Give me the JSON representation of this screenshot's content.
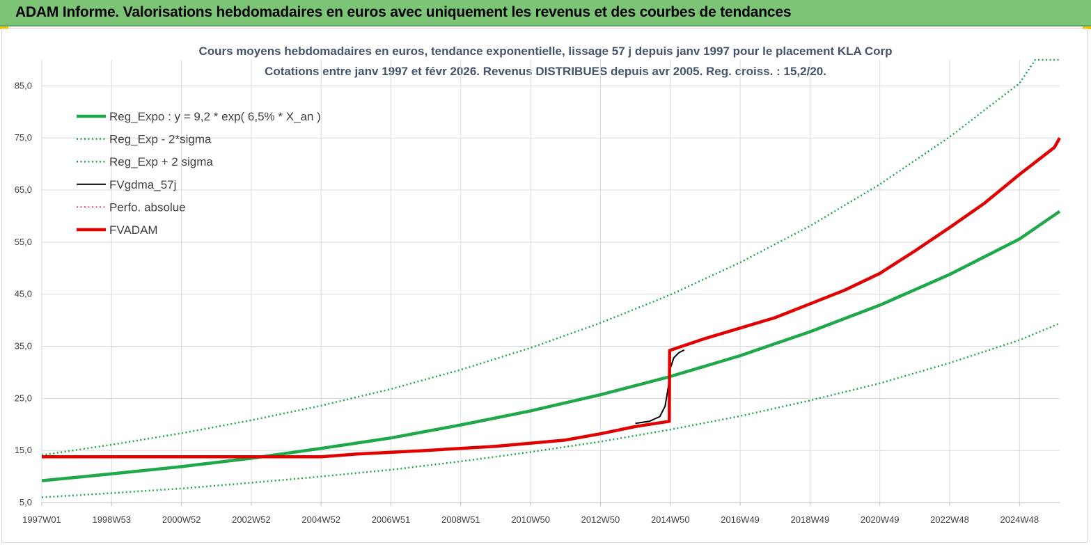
{
  "header": {
    "title": "ADAM Informe. Valorisations hebdomadaires en euros avec uniquement les revenus et des courbes de tendances"
  },
  "chart_data": {
    "type": "line",
    "title": "Cours moyens hebdomadaires en euros, tendance exponentielle, lissage 57 j depuis janv 1997 pour le placement KLA Corp",
    "subtitle": "Cotations entre janv 1997 et févr 2026. Revenus DISTRIBUES depuis avr 2005. Reg. croiss. : 15,2/20.",
    "xlabel": "",
    "ylabel": "",
    "ylim": [
      5,
      90
    ],
    "xlim": [
      1997.0,
      2026.15
    ],
    "y_ticks": [
      "85,0",
      "75,0",
      "65,0",
      "55,0",
      "45,0",
      "35,0",
      "25,0",
      "15,0",
      "5,0"
    ],
    "y_tick_values": [
      85,
      75,
      65,
      55,
      45,
      35,
      25,
      15,
      5
    ],
    "x_ticks": [
      "1997W01",
      "1998W53",
      "2000W52",
      "2002W52",
      "2004W52",
      "2006W51",
      "2008W51",
      "2010W50",
      "2012W50",
      "2014W50",
      "2016W49",
      "2018W49",
      "2020W49",
      "2022W48",
      "2024W48"
    ],
    "x_tick_values": [
      1997.0,
      1999.0,
      2001.0,
      2003.0,
      2005.0,
      2007.0,
      2009.0,
      2011.0,
      2013.0,
      2015.0,
      2017.0,
      2019.0,
      2021.0,
      2023.0,
      2025.0
    ],
    "grid": true,
    "legend_position": "top-left",
    "series": [
      {
        "name": "Reg_Expo : y = 9,2 * exp( 6,5% *  X_an )",
        "color": "#1fa84a",
        "style": "solid-thick",
        "x": [
          1997,
          1999,
          2001,
          2003,
          2005,
          2007,
          2009,
          2011,
          2013,
          2015,
          2017,
          2019,
          2021,
          2023,
          2025,
          2026.15
        ],
        "values": [
          9.2,
          10.5,
          11.9,
          13.5,
          15.4,
          17.4,
          19.9,
          22.6,
          25.7,
          29.2,
          33.2,
          37.8,
          42.9,
          48.8,
          55.6,
          60.9
        ]
      },
      {
        "name": "Reg_Exp - 2*sigma",
        "color": "#1fa84a",
        "style": "dotted",
        "x": [
          1997,
          1999,
          2001,
          2003,
          2005,
          2007,
          2009,
          2011,
          2013,
          2015,
          2017,
          2019,
          2021,
          2023,
          2025,
          2026.15
        ],
        "values": [
          6.0,
          6.8,
          7.7,
          8.8,
          10.0,
          11.3,
          12.9,
          14.7,
          16.7,
          19.0,
          21.6,
          24.6,
          27.9,
          31.8,
          36.2,
          39.4
        ]
      },
      {
        "name": "Reg_Exp + 2 sigma",
        "color": "#1fa84a",
        "style": "dotted",
        "x": [
          1997,
          1999,
          2001,
          2003,
          2005,
          2007,
          2009,
          2011,
          2013,
          2015,
          2017,
          2019,
          2021,
          2023,
          2025,
          2025.45,
          2026.15
        ],
        "values": [
          14.1,
          16.1,
          18.3,
          20.8,
          23.6,
          26.8,
          30.5,
          34.7,
          39.5,
          44.9,
          51.1,
          58.1,
          66.1,
          75.2,
          85.5,
          90.0,
          90.0
        ]
      },
      {
        "name": "FVgdma_57j",
        "color": "#000000",
        "style": "solid",
        "x": [
          2014.0,
          2014.4,
          2014.7,
          2014.85,
          2014.95,
          2015.0,
          2015.1,
          2015.25,
          2015.4
        ],
        "values": [
          20.2,
          20.6,
          21.5,
          23.5,
          27.5,
          30.8,
          32.8,
          33.8,
          34.3
        ]
      },
      {
        "name": "Perfo. absolue",
        "color": "#e00000",
        "style": "dotted",
        "x": [
          1997.0,
          2005.0,
          2006.0,
          2008.0,
          2010.0,
          2012.0,
          2013.0,
          2014.0,
          2014.97,
          2014.98,
          2016.0,
          2018.0,
          2020.0,
          2021.0,
          2022.0,
          2023.0,
          2024.0,
          2025.0,
          2026.0,
          2026.15
        ],
        "values": [
          13.8,
          13.8,
          14.3,
          15.0,
          15.8,
          17.0,
          18.2,
          19.6,
          20.6,
          34.2,
          36.5,
          40.5,
          45.8,
          49.0,
          53.3,
          57.8,
          62.5,
          68.0,
          73.2,
          75.0
        ]
      },
      {
        "name": "FVADAM",
        "color": "#e00000",
        "style": "solid-thick",
        "x": [
          1997.0,
          2005.0,
          2006.0,
          2008.0,
          2010.0,
          2012.0,
          2013.0,
          2014.0,
          2014.97,
          2014.98,
          2016.0,
          2018.0,
          2020.0,
          2021.0,
          2022.0,
          2023.0,
          2024.0,
          2025.0,
          2026.0,
          2026.15
        ],
        "values": [
          13.8,
          13.8,
          14.3,
          15.0,
          15.8,
          17.0,
          18.2,
          19.6,
          20.6,
          34.2,
          36.5,
          40.5,
          45.8,
          49.0,
          53.3,
          57.8,
          62.5,
          68.0,
          73.2,
          75.0
        ]
      }
    ]
  }
}
